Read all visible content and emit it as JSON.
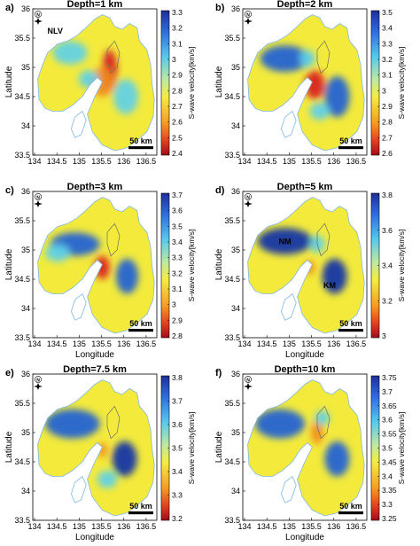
{
  "ylabel_left": "Latitude",
  "xlabel": "Longitude",
  "colorbar_label": "S-wave velocity[km/s]",
  "scale_label": "50 km",
  "north_label": "N",
  "x_ticks": [
    "134",
    "134.5",
    "135",
    "135.5",
    "136",
    "136.5"
  ],
  "y_ticks": [
    "33.5",
    "34",
    "34.5",
    "35",
    "35.5",
    "36"
  ],
  "panels": [
    {
      "letter": "a)",
      "title": "Depth=1 km",
      "colorbar_ticks": [
        "3.3",
        "3.2",
        "3.1",
        "3",
        "2.9",
        "2.8",
        "2.7",
        "2.6",
        "2.5",
        "2.4"
      ],
      "show_xlabel": false,
      "labels": [
        {
          "text": "NLV"
        }
      ]
    },
    {
      "letter": "b)",
      "title": "Depth=2 km",
      "colorbar_ticks": [
        "3.5",
        "3.4",
        "3.3",
        "3.2",
        "3.1",
        "3",
        "2.9",
        "2.8",
        "2.7",
        "2.6"
      ],
      "show_xlabel": false,
      "labels": []
    },
    {
      "letter": "c)",
      "title": "Depth=3 km",
      "colorbar_ticks": [
        "3.7",
        "3.6",
        "3.5",
        "3.4",
        "3.3",
        "3.2",
        "3.1",
        "3",
        "2.9",
        "2.8"
      ],
      "show_xlabel": true,
      "labels": []
    },
    {
      "letter": "d)",
      "title": "Depth=5 km",
      "colorbar_ticks": [
        "3.8",
        "3.6",
        "3.4",
        "3.2",
        "3"
      ],
      "show_xlabel": true,
      "labels": [
        {
          "text": "NM"
        },
        {
          "text": "KM"
        }
      ]
    },
    {
      "letter": "e)",
      "title": "Depth=7.5 km",
      "colorbar_ticks": [
        "3.8",
        "3.7",
        "3.6",
        "3.5",
        "3.4",
        "3.3",
        "3.2"
      ],
      "show_xlabel": true,
      "labels": []
    },
    {
      "letter": "f)",
      "title": "Depth=10 km",
      "colorbar_ticks": [
        "3.75",
        "3.7",
        "3.65",
        "3.6",
        "3.55",
        "3.5",
        "3.45",
        "3.4",
        "3.35",
        "3.3",
        "3.25"
      ],
      "show_xlabel": true,
      "labels": []
    }
  ],
  "colors": {
    "map_base": "#f3ea3c",
    "map_cyan": "#5fd0e8",
    "map_blue": "#1f5fd6",
    "map_deep": "#0e2fa8",
    "map_orange": "#f08a1c",
    "map_red": "#d8201b",
    "sea_outline": "#7fb8e6",
    "colorbar_top": "#1c2f9b",
    "colorbar_bottom": "#a50a1a"
  }
}
